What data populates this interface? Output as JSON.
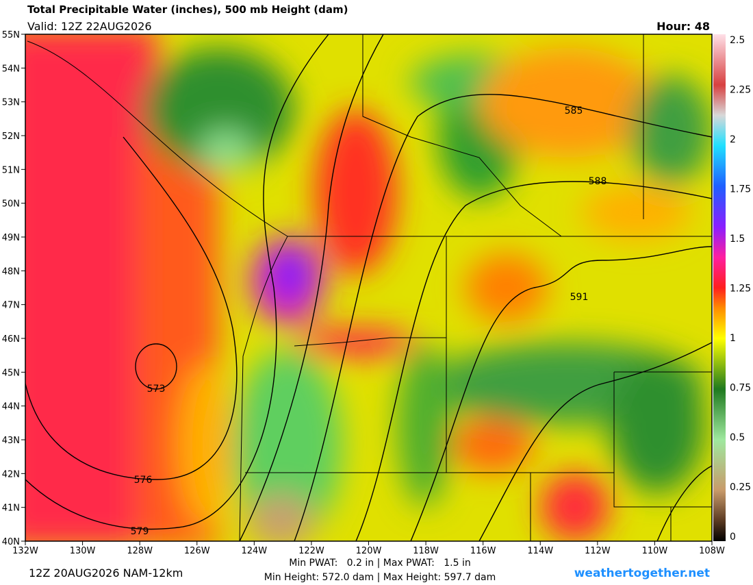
{
  "header": {
    "title": "Total Precipitable Water (inches), 500 mb Height (dam)",
    "valid": "Valid: 12Z 22AUG2026",
    "hour": "Hour: 48"
  },
  "map": {
    "lat_labels": [
      "55N",
      "54N",
      "53N",
      "52N",
      "51N",
      "50N",
      "49N",
      "48N",
      "47N",
      "46N",
      "45N",
      "44N",
      "43N",
      "42N",
      "41N",
      "40N"
    ],
    "lon_labels": [
      "132W",
      "130W",
      "128W",
      "126W",
      "124W",
      "122W",
      "120W",
      "118W",
      "116W",
      "114W",
      "112W",
      "110W",
      "108W"
    ],
    "contour_labels": [
      "573",
      "576",
      "579",
      "585",
      "588",
      "591"
    ]
  },
  "colorbar": {
    "labels": [
      "2.5",
      "2.25",
      "2",
      "1.75",
      "1.5",
      "1.25",
      "1",
      "0.75",
      "0.5",
      "0.25",
      "0"
    ]
  },
  "footer": {
    "run": "12Z 20AUG2026 NAM-12km",
    "pwat": "Min PWAT:   0.2 in | Max PWAT:   1.5 in",
    "height": "Min Height: 572.0 dam | Max Height: 597.7 dam",
    "site": "weathertogether.net"
  }
}
